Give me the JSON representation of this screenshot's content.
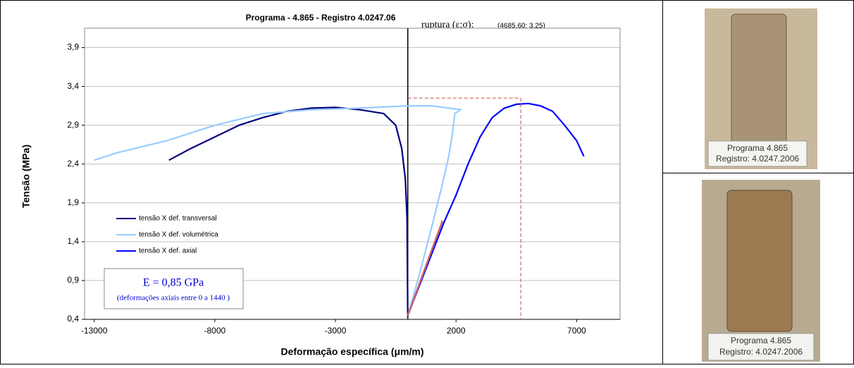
{
  "chart_data": {
    "type": "line",
    "title": "Programa - 4.865 - Registro  4.0247.06",
    "x_label": "Deformação específica (μm/m)",
    "y_label": "Tensão (MPa)",
    "annotation_rupture_label": "ruptura (ε;σ):",
    "annotation_rupture_value": "(4685,60; 3,25)",
    "annotation_modulus": "E = 0,85 GPa",
    "annotation_modulus_note": "(deformações axiais entre 0 a 1440 )",
    "xlim": [
      -13400,
      8800
    ],
    "xticks": [
      -13000,
      -8000,
      -3000,
      2000,
      7000
    ],
    "ylim": [
      0.4,
      4.15
    ],
    "yticks": [
      {
        "value": 0.4,
        "label": "0,4"
      },
      {
        "value": 0.9,
        "label": "0,9"
      },
      {
        "value": 1.4,
        "label": "1,4"
      },
      {
        "value": 1.9,
        "label": "1,9"
      },
      {
        "value": 2.4,
        "label": "2,4"
      },
      {
        "value": 2.9,
        "label": "2,9"
      },
      {
        "value": 3.4,
        "label": "3,4"
      },
      {
        "value": 3.9,
        "label": "3,9"
      }
    ],
    "grid": true,
    "legend": "left",
    "series": [
      {
        "name": "tensão X def. transversal",
        "color": "#000080",
        "x": [
          -9900,
          -9000,
          -8000,
          -7000,
          -6000,
          -5000,
          -4000,
          -3000,
          -2000,
          -1000,
          -500,
          -250,
          -100,
          -30,
          0
        ],
        "values": [
          2.45,
          2.6,
          2.75,
          2.9,
          3.0,
          3.08,
          3.12,
          3.13,
          3.1,
          3.05,
          2.9,
          2.6,
          2.2,
          1.7,
          0.45
        ]
      },
      {
        "name": "tensão X def. volumétrica",
        "color": "#99ccff",
        "x": [
          0,
          500,
          1000,
          1400,
          1700,
          1850,
          1950,
          2200,
          1000,
          0,
          -2000,
          -4000,
          -6000,
          -8000,
          -10000,
          -12000,
          -13000
        ],
        "values": [
          0.45,
          1.0,
          1.6,
          2.1,
          2.5,
          2.8,
          3.05,
          3.1,
          3.15,
          3.15,
          3.12,
          3.1,
          3.05,
          2.9,
          2.7,
          2.55,
          2.45
        ]
      },
      {
        "name": "tensão X def. axial",
        "color": "#0000ff",
        "x": [
          0,
          500,
          1000,
          1500,
          2000,
          2500,
          3000,
          3500,
          4000,
          4500,
          5000,
          5500,
          6000,
          6500,
          7000,
          7300
        ],
        "values": [
          0.45,
          0.85,
          1.25,
          1.65,
          2.0,
          2.4,
          2.75,
          3.0,
          3.12,
          3.17,
          3.18,
          3.15,
          3.08,
          2.9,
          2.7,
          2.5
        ]
      }
    ],
    "fit_line": {
      "color": "#cc6666",
      "x": [
        0,
        1440
      ],
      "values": [
        0.45,
        1.67
      ]
    },
    "rupture": {
      "x": 4685.6,
      "y": 3.25,
      "color": "#c0504d"
    }
  },
  "photos": [
    {
      "caption": [
        "Programa 4.865",
        "Registro: 4.0247.2006"
      ]
    },
    {
      "caption": [
        "Programa 4.865",
        "Registro: 4.0247.2006"
      ]
    }
  ]
}
